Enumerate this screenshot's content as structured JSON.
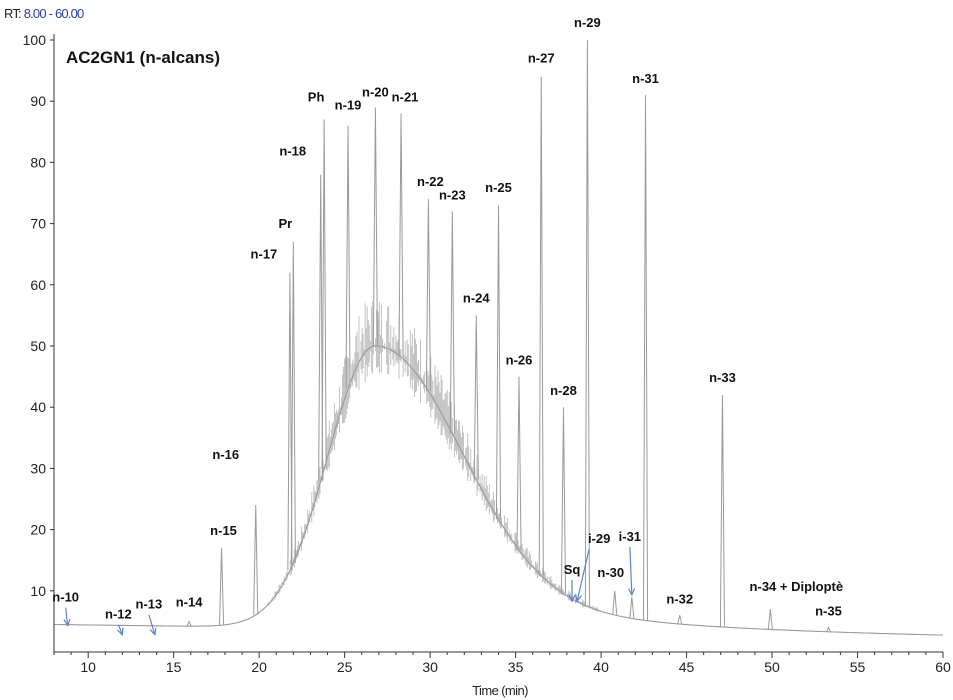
{
  "header": {
    "rt_prefix": "RT:",
    "rt_range": "8.00 - 60.00"
  },
  "chart_data": {
    "type": "line",
    "title": "AC2GN1 (n-alcans)",
    "xlabel": "Time (min)",
    "ylabel": "",
    "xlim": [
      8,
      60
    ],
    "ylim": [
      0,
      100
    ],
    "xticks": [
      10,
      15,
      20,
      25,
      30,
      35,
      40,
      45,
      50,
      55,
      60
    ],
    "yticks": [
      10,
      20,
      30,
      40,
      50,
      60,
      70,
      80,
      90,
      100
    ],
    "grid": false,
    "colors": {
      "trace": "#9a9a9a",
      "arrow": "#5b86c9",
      "axis": "#333333"
    },
    "hump": {
      "baseline_start": 4.5,
      "baseline_end": 2.5,
      "peak_x": 26.8,
      "peak_y": 50,
      "width_left": 2.8,
      "width_right": 4.8
    },
    "peaks": [
      {
        "label": "n-10",
        "x": 8.8,
        "y": 4,
        "arrow": true
      },
      {
        "label": "n-12",
        "x": 12.0,
        "y": 2.5,
        "arrow": true
      },
      {
        "label": "n-13",
        "x": 13.9,
        "y": 2.5,
        "arrow": true
      },
      {
        "label": "n-14",
        "x": 15.9,
        "y": 5
      },
      {
        "label": "n-15",
        "x": 17.8,
        "y": 17
      },
      {
        "label": "n-16",
        "x": 19.8,
        "y": 24
      },
      {
        "label": "n-17",
        "x": 21.8,
        "y": 62
      },
      {
        "label": "Pr",
        "x": 22.0,
        "y": 67
      },
      {
        "label": "n-18",
        "x": 23.6,
        "y": 78
      },
      {
        "label": "Ph",
        "x": 23.8,
        "y": 87
      },
      {
        "label": "n-19",
        "x": 25.2,
        "y": 86
      },
      {
        "label": "n-20",
        "x": 26.8,
        "y": 89
      },
      {
        "label": "n-21",
        "x": 28.3,
        "y": 88
      },
      {
        "label": "n-22",
        "x": 29.9,
        "y": 74
      },
      {
        "label": "n-23",
        "x": 31.3,
        "y": 72
      },
      {
        "label": "n-24",
        "x": 32.7,
        "y": 55
      },
      {
        "label": "n-25",
        "x": 34.0,
        "y": 73
      },
      {
        "label": "n-26",
        "x": 35.2,
        "y": 45
      },
      {
        "label": "n-27",
        "x": 36.5,
        "y": 94
      },
      {
        "label": "n-28",
        "x": 37.8,
        "y": 40
      },
      {
        "label": "Sq",
        "x": 38.3,
        "y": 8,
        "arrow": true
      },
      {
        "label": "i-29",
        "x": 38.6,
        "y": 8,
        "arrow": true
      },
      {
        "label": "n-29",
        "x": 39.2,
        "y": 100
      },
      {
        "label": "n-30",
        "x": 40.8,
        "y": 10
      },
      {
        "label": "i-31",
        "x": 41.8,
        "y": 9,
        "arrow": true
      },
      {
        "label": "n-31",
        "x": 42.6,
        "y": 91
      },
      {
        "label": "n-32",
        "x": 44.6,
        "y": 6
      },
      {
        "label": "n-33",
        "x": 47.1,
        "y": 42
      },
      {
        "label": "n-34 + Diploptè",
        "x": 49.9,
        "y": 7
      },
      {
        "label": "n-35",
        "x": 53.3,
        "y": 4
      }
    ]
  }
}
